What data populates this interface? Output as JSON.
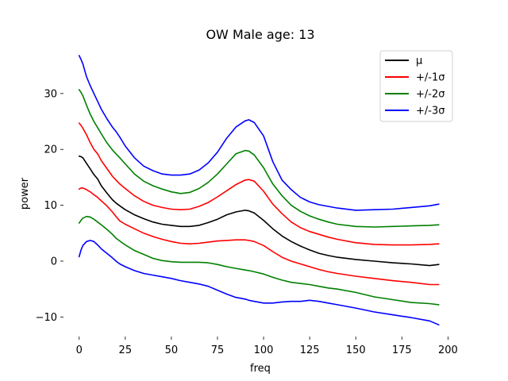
{
  "chart_data": {
    "type": "line",
    "title": "OW Male age: 13",
    "xlabel": "freq",
    "ylabel": "power",
    "xlim": [
      -8.5,
      205
    ],
    "ylim": [
      -13.5,
      38.5
    ],
    "xticks": [
      0,
      25,
      50,
      75,
      100,
      125,
      150,
      175,
      200
    ],
    "yticks": [
      -10,
      0,
      10,
      20,
      30
    ],
    "grid": false,
    "legend_position": "top-right",
    "x": [
      0,
      1,
      2,
      4,
      6,
      8,
      10,
      12,
      15,
      18,
      20,
      22,
      25,
      30,
      35,
      40,
      45,
      50,
      55,
      60,
      65,
      70,
      75,
      80,
      85,
      90,
      92,
      95,
      100,
      105,
      110,
      115,
      120,
      125,
      130,
      135,
      140,
      150,
      160,
      170,
      180,
      190,
      195
    ],
    "series": [
      {
        "name": "μ",
        "color": "#000000",
        "values": [
          18.8,
          18.7,
          18.5,
          17.5,
          16.5,
          15.5,
          14.7,
          13.5,
          12.2,
          11.0,
          10.4,
          9.9,
          9.2,
          8.3,
          7.6,
          7.0,
          6.6,
          6.4,
          6.2,
          6.2,
          6.4,
          6.9,
          7.5,
          8.3,
          8.8,
          9.1,
          9.0,
          8.6,
          7.3,
          5.8,
          4.5,
          3.5,
          2.7,
          2.0,
          1.4,
          1.0,
          0.7,
          0.3,
          0.0,
          -0.3,
          -0.5,
          -0.8,
          -0.6
        ]
      },
      {
        "name": "+/-1σ",
        "color": "#ff0000",
        "values": [
          12.9,
          13.1,
          13.1,
          12.8,
          12.4,
          11.9,
          11.4,
          10.8,
          9.9,
          8.8,
          8.0,
          7.2,
          6.6,
          5.8,
          5.0,
          4.4,
          3.9,
          3.5,
          3.2,
          3.1,
          3.2,
          3.4,
          3.6,
          3.7,
          3.8,
          3.8,
          3.7,
          3.5,
          2.8,
          1.7,
          0.7,
          0.0,
          -0.5,
          -1.0,
          -1.5,
          -1.9,
          -2.2,
          -2.7,
          -3.1,
          -3.5,
          -3.8,
          -4.2,
          -4.2
        ],
        "upper": [
          24.7,
          24.3,
          23.8,
          22.6,
          21.2,
          20.0,
          19.2,
          18.0,
          16.6,
          15.2,
          14.5,
          13.8,
          13.0,
          11.7,
          10.7,
          10.0,
          9.6,
          9.3,
          9.2,
          9.3,
          9.8,
          10.5,
          11.5,
          12.6,
          13.7,
          14.5,
          14.6,
          14.3,
          12.5,
          10.2,
          8.5,
          7.0,
          6.0,
          5.3,
          4.8,
          4.3,
          3.9,
          3.3,
          3.0,
          2.9,
          2.9,
          3.0,
          3.1
        ]
      },
      {
        "name": "+/-2σ",
        "color": "#008000",
        "values": [
          6.8,
          7.3,
          7.7,
          8.0,
          7.9,
          7.5,
          7.0,
          6.5,
          5.7,
          4.8,
          4.1,
          3.6,
          2.9,
          1.9,
          1.2,
          0.5,
          0.1,
          -0.1,
          -0.2,
          -0.2,
          -0.2,
          -0.3,
          -0.6,
          -1.0,
          -1.3,
          -1.6,
          -1.7,
          -1.9,
          -2.3,
          -2.9,
          -3.4,
          -3.8,
          -4.0,
          -4.2,
          -4.5,
          -4.8,
          -5.0,
          -5.6,
          -6.4,
          -6.9,
          -7.4,
          -7.6,
          -7.8
        ],
        "upper": [
          30.7,
          30.2,
          29.6,
          27.9,
          26.3,
          25.0,
          23.9,
          22.8,
          21.2,
          19.9,
          19.2,
          18.5,
          17.4,
          15.6,
          14.3,
          13.5,
          12.9,
          12.4,
          12.1,
          12.3,
          13.0,
          14.1,
          15.6,
          17.4,
          19.2,
          19.8,
          19.7,
          19.0,
          16.7,
          13.8,
          11.7,
          10.0,
          8.9,
          8.1,
          7.5,
          7.0,
          6.6,
          6.2,
          6.1,
          6.2,
          6.3,
          6.4,
          6.5
        ]
      },
      {
        "name": "+/-3σ",
        "color": "#0000ff",
        "values": [
          0.8,
          2.0,
          2.8,
          3.5,
          3.7,
          3.5,
          2.9,
          2.2,
          1.4,
          0.6,
          0.0,
          -0.5,
          -1.0,
          -1.7,
          -2.2,
          -2.5,
          -2.8,
          -3.1,
          -3.5,
          -3.8,
          -4.1,
          -4.5,
          -5.2,
          -5.9,
          -6.5,
          -6.8,
          -7.0,
          -7.2,
          -7.5,
          -7.5,
          -7.3,
          -7.2,
          -7.2,
          -7.0,
          -7.2,
          -7.5,
          -7.8,
          -8.4,
          -9.1,
          -9.6,
          -10.1,
          -10.7,
          -11.4
        ],
        "upper": [
          36.8,
          36.1,
          35.3,
          33.0,
          31.4,
          30.0,
          28.6,
          27.2,
          25.5,
          24.0,
          23.2,
          22.2,
          20.6,
          18.5,
          17.0,
          16.2,
          15.6,
          15.4,
          15.4,
          15.6,
          16.3,
          17.6,
          19.5,
          22.0,
          24.0,
          25.1,
          25.3,
          24.8,
          22.4,
          17.8,
          14.5,
          12.8,
          11.4,
          10.6,
          10.1,
          9.8,
          9.5,
          9.1,
          9.2,
          9.3,
          9.6,
          9.9,
          10.2
        ]
      }
    ]
  }
}
